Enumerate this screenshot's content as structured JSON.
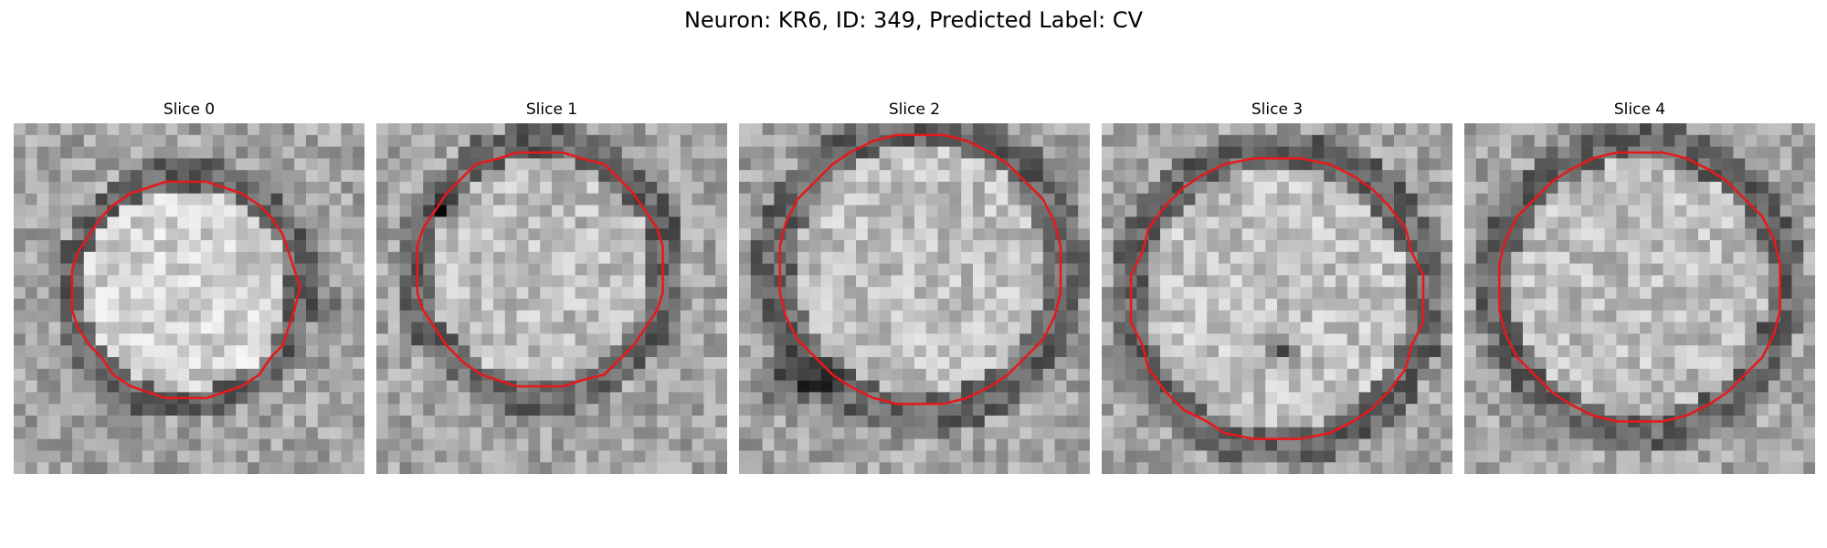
{
  "figure": {
    "title": "Neuron: KR6, ID: 349, Predicted Label: CV"
  },
  "colors": {
    "contour": "#e41a1c",
    "colormap": "grayscale"
  },
  "panels": [
    {
      "title": "Slice 0"
    },
    {
      "title": "Slice 1"
    },
    {
      "title": "Slice 2"
    },
    {
      "title": "Slice 3"
    },
    {
      "title": "Slice 4"
    }
  ]
}
